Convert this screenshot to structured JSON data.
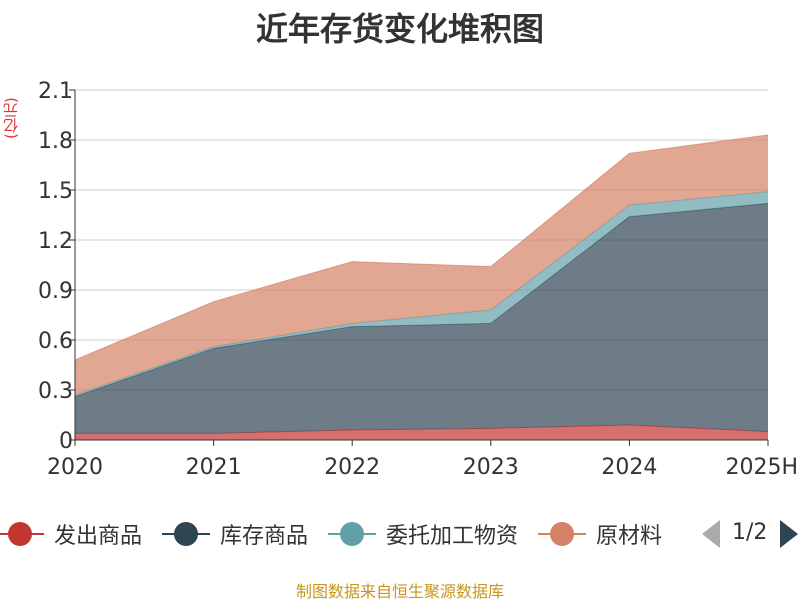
{
  "title": "近年存货变化堆积图",
  "source_note": "制图数据来自恒生聚源数据库",
  "legend_pager": {
    "text": "1/2"
  },
  "chart_data": {
    "type": "area",
    "stacked": true,
    "title": "近年存货变化堆积图",
    "ylabel": "(亿元)",
    "xlabel": "",
    "categories": [
      "2020",
      "2021",
      "2022",
      "2023",
      "2024",
      "2025H"
    ],
    "ylim": [
      0,
      2.1
    ],
    "yticks": [
      "0",
      "0.3",
      "0.6",
      "0.9",
      "1.2",
      "1.5",
      "1.8",
      "2.1"
    ],
    "grid": true,
    "legend_position": "bottom",
    "series": [
      {
        "name": "发出商品",
        "color": "#c23531",
        "values": [
          0.04,
          0.04,
          0.06,
          0.07,
          0.09,
          0.05
        ]
      },
      {
        "name": "库存商品",
        "color": "#2f4554",
        "values": [
          0.22,
          0.51,
          0.62,
          0.63,
          1.25,
          1.37
        ]
      },
      {
        "name": "委托加工物资",
        "color": "#61a0a8",
        "values": [
          0.01,
          0.01,
          0.02,
          0.08,
          0.07,
          0.07
        ]
      },
      {
        "name": "原材料",
        "color": "#d48265",
        "values": [
          0.21,
          0.27,
          0.37,
          0.26,
          0.31,
          0.34
        ]
      }
    ]
  }
}
